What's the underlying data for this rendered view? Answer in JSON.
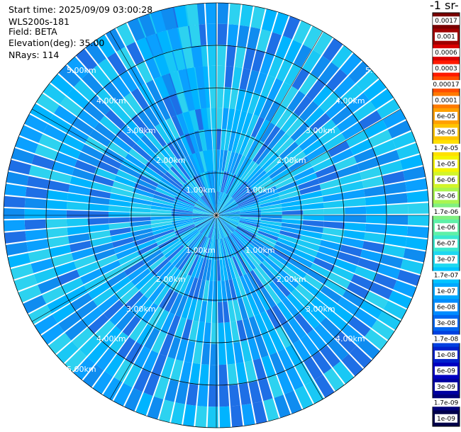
{
  "header": {
    "start_time": "Start time: 2025/09/09 03:00:28",
    "instrument": "WLS200s-181",
    "field": "Field: BETA",
    "elevation": "Elevation(deg): 35.00",
    "nrays": "NRays: 114"
  },
  "colorbar": {
    "title_fragment": "-1 sr-",
    "ticks": [
      "0.0017",
      "0.001",
      "0.0006",
      "0.0003",
      "0.00017",
      "0.0001",
      "6e-05",
      "3e-05",
      "1.7e-05",
      "1e-05",
      "6e-06",
      "3e-06",
      "1.7e-06",
      "1e-06",
      "6e-07",
      "3e-07",
      "1.7e-07",
      "1e-07",
      "6e-08",
      "3e-08",
      "1.7e-08",
      "1e-08",
      "6e-09",
      "3e-09",
      "1.7e-09",
      "1e-09"
    ],
    "colors": [
      "#7a0000",
      "#a00000",
      "#d80000",
      "#ff1a00",
      "#ff4d00",
      "#ff7a00",
      "#ffa000",
      "#ffc400",
      "#ffe000",
      "#f5f500",
      "#d2f52a",
      "#aaf550",
      "#80f080",
      "#5ef0a8",
      "#3ae8d0",
      "#1ed8f0",
      "#00c4ff",
      "#00a8ff",
      "#008cff",
      "#0066f0",
      "#0040e0",
      "#0020cc",
      "#0000c0",
      "#0000a0",
      "#000078",
      "#00004a"
    ]
  },
  "ring_labels": {
    "r1": "1.00km",
    "r2": "2.00km",
    "r3": "3.00km",
    "r4": "4.00km",
    "r5": "5.00km"
  },
  "field_colors": [
    "#00b4ff",
    "#0aa0ff",
    "#19c8f5",
    "#0f8cf0",
    "#1e6fe6",
    "#2dd2f0"
  ]
}
